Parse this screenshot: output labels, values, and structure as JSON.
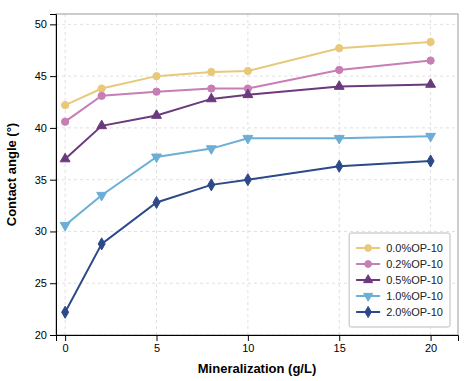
{
  "chart_data": {
    "type": "line",
    "x": [
      0,
      2,
      5,
      8,
      10,
      15,
      20
    ],
    "series": [
      {
        "name": "0.0%OP-10",
        "color": "#E8C97A",
        "marker": "circle",
        "line_style": "solid",
        "values": [
          42.2,
          43.8,
          45.0,
          45.4,
          45.5,
          47.7,
          48.3
        ]
      },
      {
        "name": "0.2%OP-10",
        "color": "#C67EB5",
        "marker": "circle",
        "line_style": "solid",
        "values": [
          40.6,
          43.1,
          43.5,
          43.8,
          43.8,
          45.6,
          46.5
        ]
      },
      {
        "name": "0.5%OP-10",
        "color": "#6B3A7D",
        "marker": "triangle-up",
        "line_style": "solid",
        "values": [
          37.0,
          40.2,
          41.2,
          42.8,
          43.2,
          44.0,
          44.2
        ]
      },
      {
        "name": "1.0%OP-10",
        "color": "#6BAED6",
        "marker": "triangle-down",
        "line_style": "solid",
        "values": [
          30.6,
          33.5,
          37.2,
          38.0,
          39.0,
          39.0,
          39.2
        ]
      },
      {
        "name": "2.0%OP-10",
        "color": "#2C4A8A",
        "marker": "diamond",
        "line_style": "solid",
        "values": [
          22.2,
          28.8,
          32.8,
          34.5,
          35.0,
          36.3,
          36.8
        ]
      }
    ],
    "xlabel": "Mineralization (g/L)",
    "ylabel": "Contact angle (°)",
    "xlim": [
      -0.5,
      21.5
    ],
    "ylim": [
      20,
      51
    ],
    "xticks": [
      0,
      5,
      10,
      15,
      20
    ],
    "yticks": [
      20,
      25,
      30,
      35,
      40,
      45,
      50
    ],
    "grid": true,
    "legend": "lower right"
  }
}
